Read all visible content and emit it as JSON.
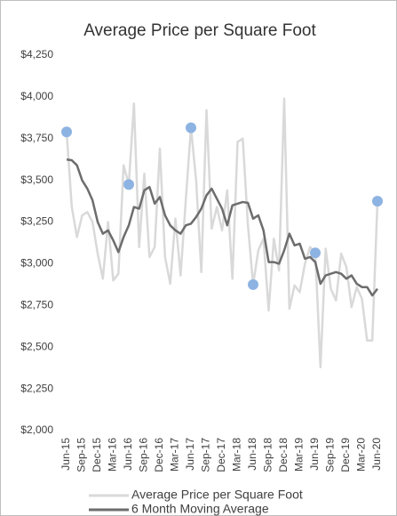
{
  "chart_data": {
    "type": "line",
    "title": "Average Price per Square Foot",
    "categories": [
      "Jun-15",
      null,
      null,
      "Sep-15",
      null,
      null,
      "Dec-15",
      null,
      null,
      "Mar-16",
      null,
      null,
      "Jun-16",
      null,
      null,
      "Sep-16",
      null,
      null,
      "Dec-16",
      null,
      null,
      "Mar-17",
      null,
      null,
      "Jun-17",
      null,
      null,
      "Sep-17",
      null,
      null,
      "Dec-17",
      null,
      null,
      "Mar-18",
      null,
      null,
      "Jun-18",
      null,
      null,
      "Sep-18",
      null,
      null,
      "Dec-18",
      null,
      null,
      "Mar-19",
      null,
      null,
      "Jun-19",
      null,
      null,
      "Sep-19",
      null,
      null,
      "Dec-19",
      null,
      null,
      "Mar-20",
      null,
      null,
      "Jun-20"
    ],
    "series": [
      {
        "name": "Average Price per Square Foot",
        "color": "#d9d9d9",
        "mode": "line",
        "values": [
          3790,
          3340,
          3160,
          3290,
          3310,
          3250,
          3060,
          2910,
          3250,
          2900,
          2940,
          3590,
          3475,
          3960,
          3100,
          3540,
          3040,
          3100,
          3690,
          3040,
          2880,
          3270,
          2930,
          3380,
          3815,
          3500,
          2950,
          3920,
          3210,
          3340,
          3200,
          3440,
          2910,
          3730,
          3750,
          3230,
          2875,
          3080,
          3150,
          2720,
          3150,
          2960,
          3990,
          2730,
          2870,
          2830,
          3000,
          3100,
          3065,
          2380,
          3090,
          2850,
          2780,
          3060,
          2980,
          2740,
          2860,
          2790,
          2540,
          2540,
          3375
        ]
      },
      {
        "name": "6 Month Moving Average",
        "color": "#6d6d6d",
        "mode": "line",
        "values": [
          3625,
          3620,
          3590,
          3500,
          3450,
          3380,
          3250,
          3180,
          3200,
          3140,
          3070,
          3160,
          3230,
          3340,
          3330,
          3440,
          3460,
          3360,
          3400,
          3290,
          3230,
          3200,
          3180,
          3230,
          3240,
          3280,
          3330,
          3410,
          3450,
          3390,
          3330,
          3230,
          3350,
          3360,
          3370,
          3365,
          3270,
          3290,
          3200,
          3010,
          3010,
          3000,
          3080,
          3180,
          3110,
          3120,
          3030,
          3040,
          3010,
          2880,
          2930,
          2940,
          2950,
          2940,
          2910,
          2930,
          2880,
          2860,
          2860,
          2810,
          2850
        ]
      },
      {
        "color": "#8db3e2",
        "mode": "markers",
        "values": [
          3790,
          null,
          null,
          null,
          null,
          null,
          null,
          null,
          null,
          null,
          null,
          null,
          3475,
          null,
          null,
          null,
          null,
          null,
          null,
          null,
          null,
          null,
          null,
          null,
          3815,
          null,
          null,
          null,
          null,
          null,
          null,
          null,
          null,
          null,
          null,
          null,
          2875,
          null,
          null,
          null,
          null,
          null,
          null,
          null,
          null,
          null,
          null,
          null,
          3065,
          null,
          null,
          null,
          null,
          null,
          null,
          null,
          null,
          null,
          null,
          null,
          3375
        ]
      }
    ],
    "ylim": [
      2000,
      4250
    ],
    "yticks": [
      {
        "value": 2000,
        "label": "$2,000"
      },
      {
        "value": 2250,
        "label": "$2,250"
      },
      {
        "value": 2500,
        "label": "$2,500"
      },
      {
        "value": 2750,
        "label": "$2,750"
      },
      {
        "value": 3000,
        "label": "$3,000"
      },
      {
        "value": 3250,
        "label": "$3,250"
      },
      {
        "value": 3500,
        "label": "$3,500"
      },
      {
        "value": 3750,
        "label": "$3,750"
      },
      {
        "value": 4000,
        "label": "$4,000"
      },
      {
        "value": 4250,
        "label": "$4,250"
      }
    ],
    "grid": false,
    "legend": "bottom"
  }
}
